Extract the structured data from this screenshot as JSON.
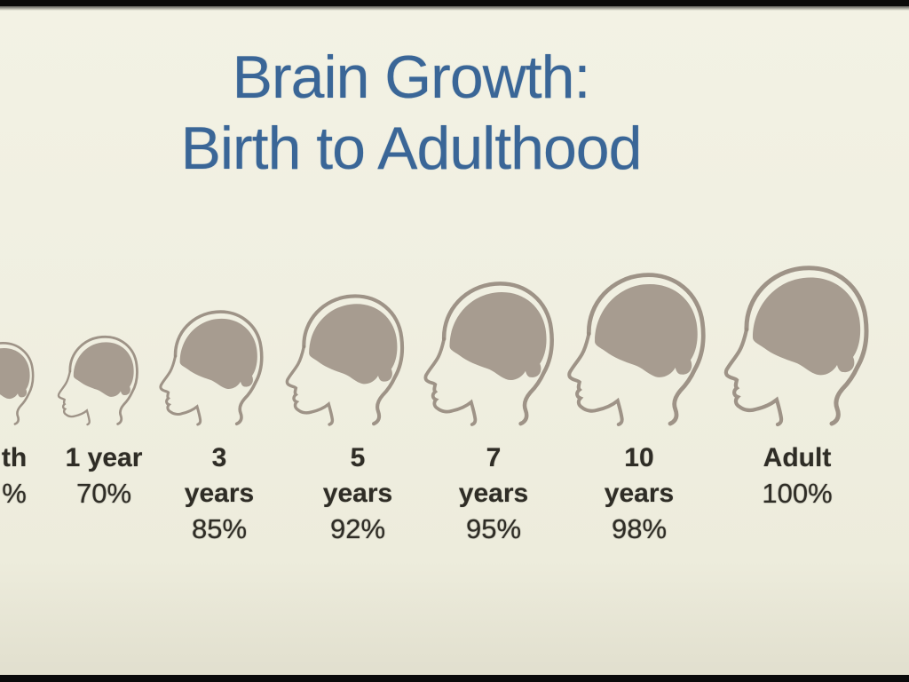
{
  "slide": {
    "title": {
      "line1": "Brain Growth:",
      "line2": "Birth to Adulthood"
    },
    "figure": {
      "description": "row of seven left-facing head profiles with shaded brains, increasing in size"
    },
    "stages": [
      {
        "id": "birth",
        "lines": [
          "th",
          "%"
        ]
      },
      {
        "id": "1-year",
        "lines": [
          "1 year",
          "70%"
        ]
      },
      {
        "id": "3-years",
        "lines": [
          "3",
          "years",
          "85%"
        ]
      },
      {
        "id": "5-years",
        "lines": [
          "5",
          "years",
          "92%"
        ]
      },
      {
        "id": "7-years",
        "lines": [
          "7",
          "years",
          "95%"
        ]
      },
      {
        "id": "10-years",
        "lines": [
          "10",
          "years",
          "98%"
        ]
      },
      {
        "id": "adult",
        "lines": [
          "Adult",
          "100%"
        ]
      }
    ],
    "colors": {
      "background": "#f0efe1",
      "brain": "#a79c90",
      "outline": "#978b7f",
      "title": "#3a6697",
      "label": "#2f2d26",
      "letterbox": "#0a0a0a"
    }
  }
}
